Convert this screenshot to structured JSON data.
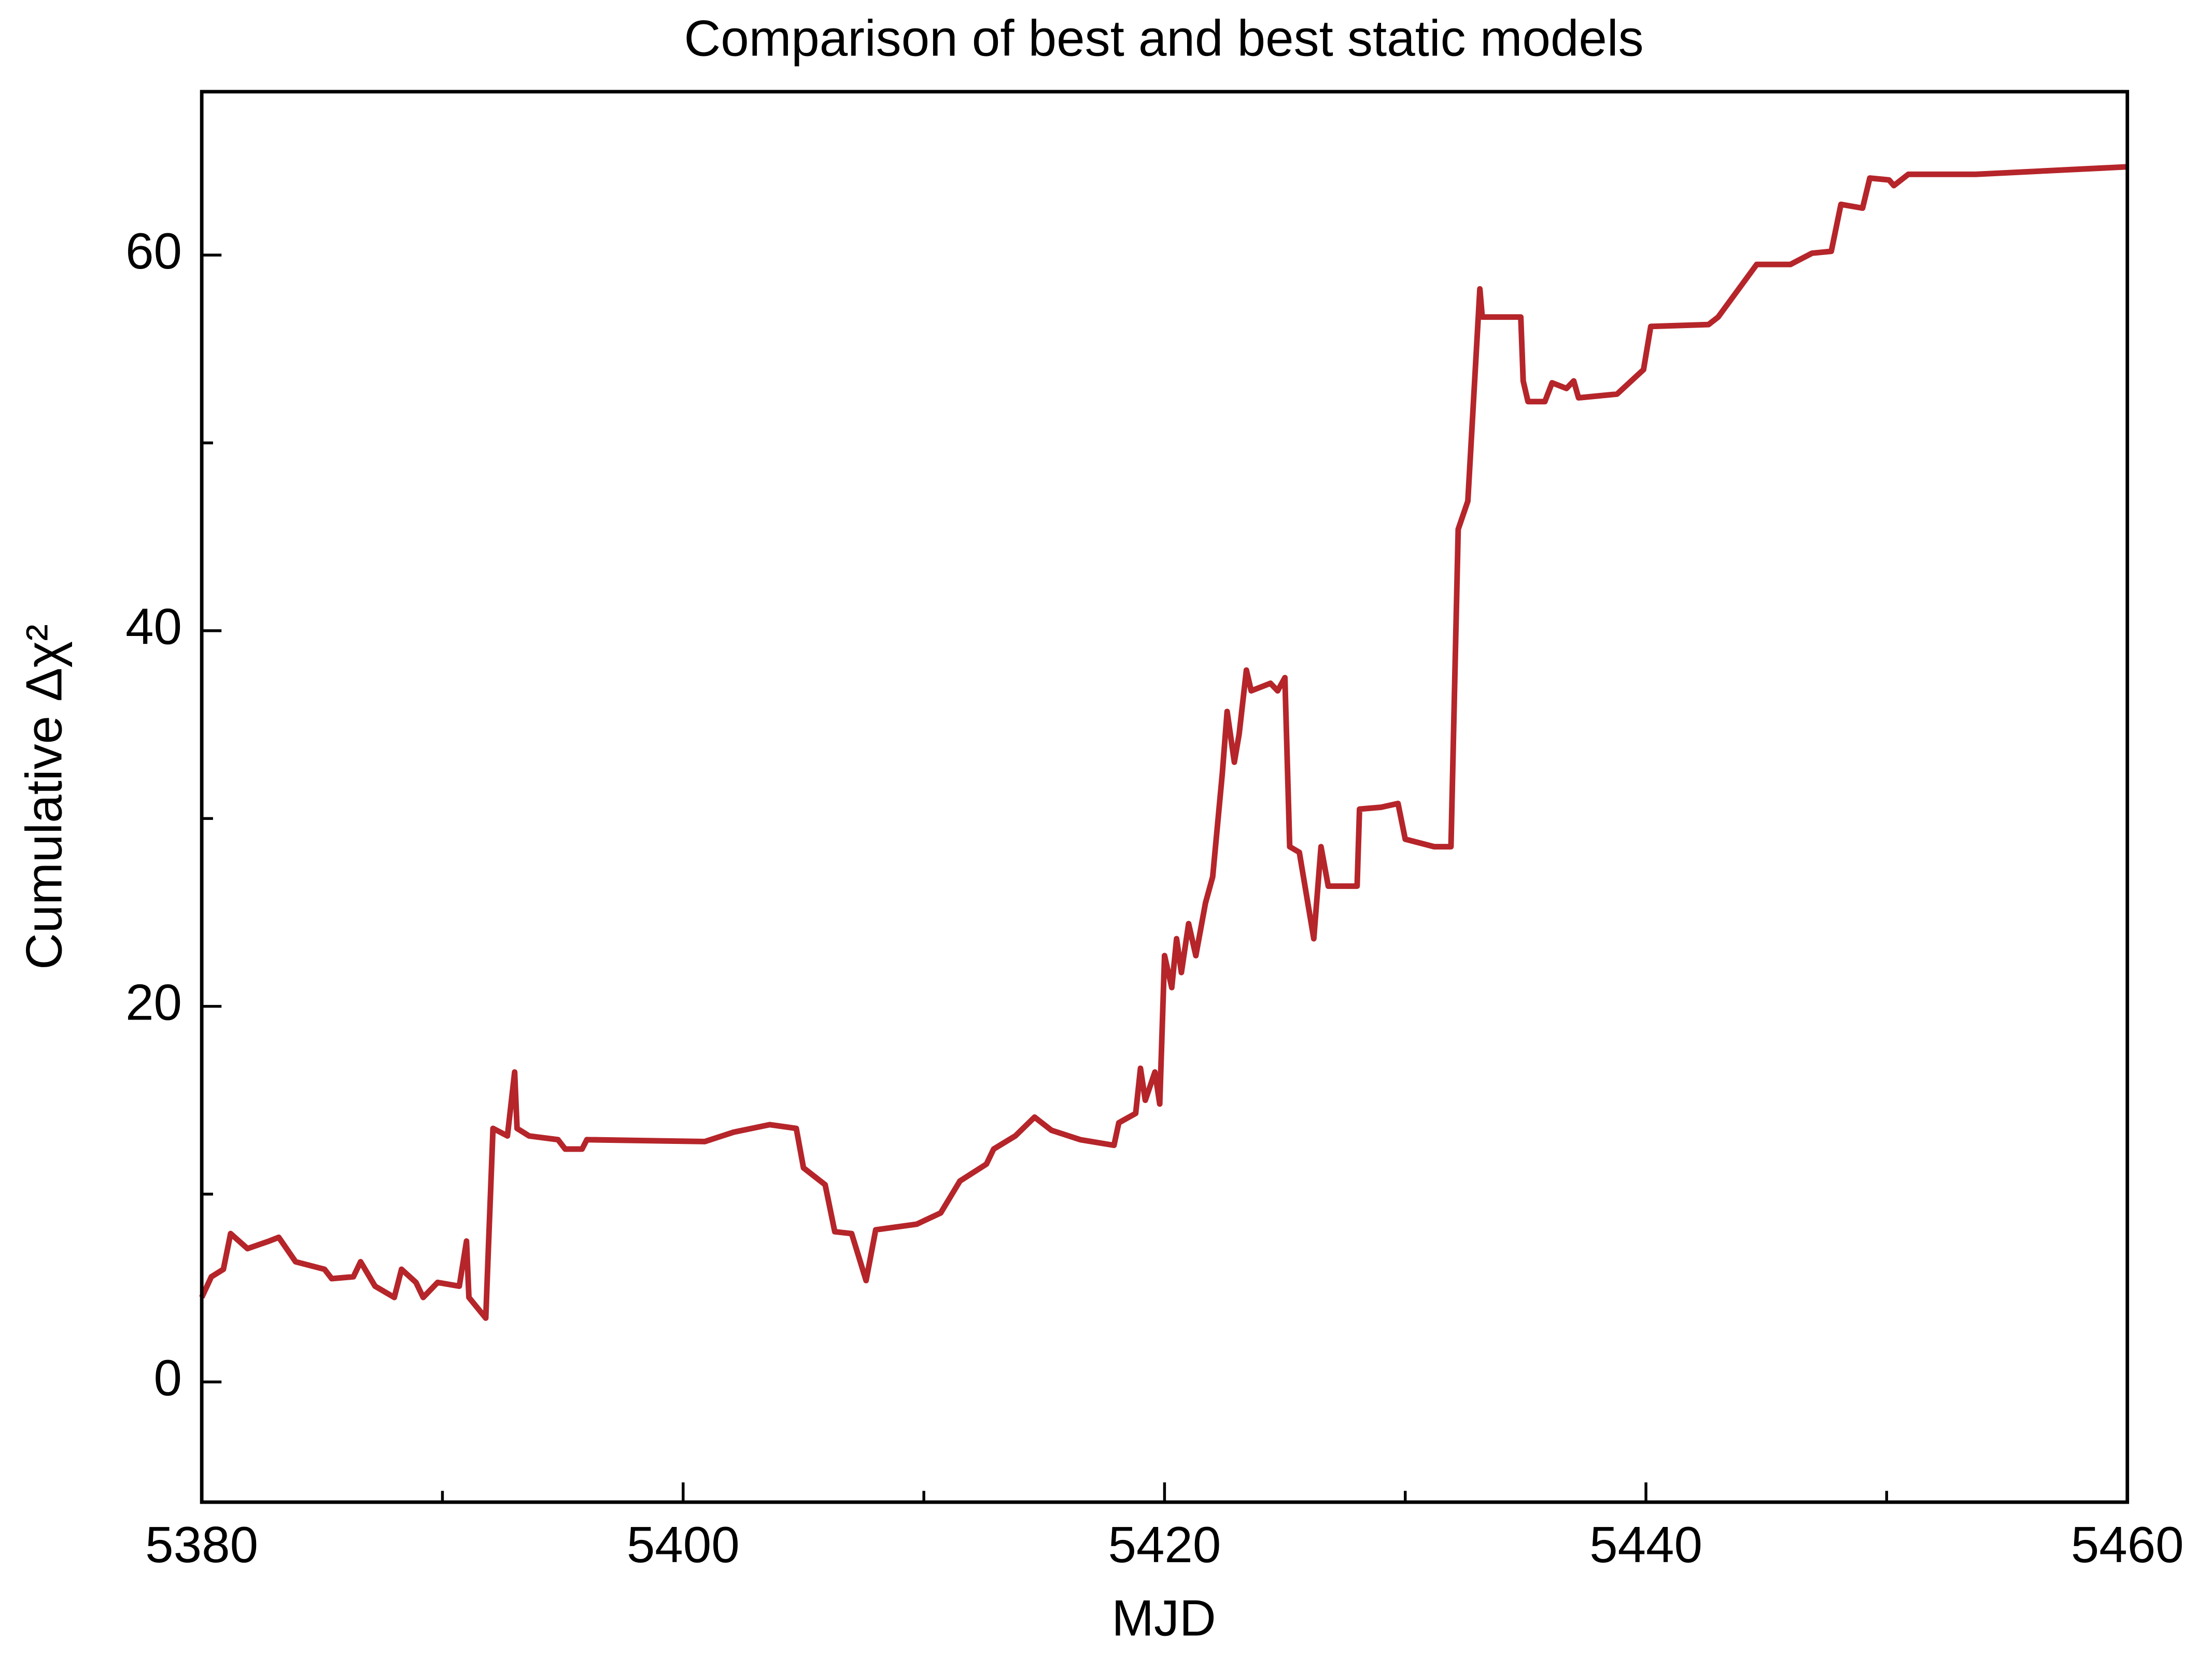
{
  "chart_data": {
    "type": "line",
    "title": "Comparison of best and best static models",
    "x_label": "MJD",
    "y_label": "Cumulative Δχ²",
    "xlim": [
      5380,
      5460
    ],
    "ylim": [
      -6.4,
      68.7
    ],
    "xticks": [
      5380,
      5400,
      5420,
      5440,
      5460
    ],
    "yticks": [
      0,
      20,
      40,
      60
    ],
    "minor_xticks": [
      5390,
      5410,
      5430,
      5450
    ],
    "minor_yticks": [
      10,
      30,
      50
    ],
    "series": [
      {
        "name": "Cumulative Δχ²",
        "color": "#b5252a",
        "x": [
          5380,
          5380.4,
          5380.9,
          5381.2,
          5381.9,
          5382.8,
          5383.2,
          5383.9,
          5385.1,
          5385.4,
          5386.3,
          5386.6,
          5387.2,
          5388.0,
          5388.3,
          5388.9,
          5389.2,
          5389.8,
          5390.7,
          5391.0,
          5391.1,
          5391.8,
          5391.9,
          5392.1,
          5392.7,
          5393.0,
          5393.1,
          5393.6,
          5394.8,
          5395.1,
          5395.8,
          5396.0,
          5400.9,
          5402.1,
          5403.6,
          5404.7,
          5405.0,
          5405.9,
          5406.3,
          5407.0,
          5407.6,
          5408.0,
          5409.7,
          5410.7,
          5411.5,
          5412.6,
          5412.9,
          5413.8,
          5414.6,
          5415.3,
          5416.5,
          5417.9,
          5418.1,
          5418.8,
          5419.0,
          5419.2,
          5419.6,
          5419.8,
          5420.0,
          5420.3,
          5420.5,
          5420.7,
          5421.0,
          5421.3,
          5421.7,
          5422.0,
          5422.4,
          5422.6,
          5422.9,
          5423.1,
          5423.4,
          5423.6,
          5424.4,
          5424.7,
          5425.0,
          5425.2,
          5425.6,
          5426.2,
          5426.5,
          5426.8,
          5428.0,
          5428.1,
          5429.0,
          5429.7,
          5430.0,
          5431.2,
          5431.9,
          5432.2,
          5432.6,
          5433.1,
          5433.2,
          5434.8,
          5434.9,
          5435.1,
          5435.8,
          5436.1,
          5436.7,
          5437.0,
          5437.2,
          5438.8,
          5439.9,
          5440.2,
          5442.6,
          5443.0,
          5444.6,
          5446.0,
          5446.9,
          5447.7,
          5448.1,
          5449.0,
          5449.3,
          5450.1,
          5450.3,
          5450.9,
          5453.7,
          5460.0
        ],
        "values": [
          4.5,
          5.6,
          6.0,
          7.9,
          7.1,
          7.5,
          7.7,
          6.4,
          6.0,
          5.5,
          5.6,
          6.4,
          5.1,
          4.5,
          6.0,
          5.3,
          4.5,
          5.3,
          5.1,
          7.5,
          4.5,
          3.4,
          6.8,
          13.5,
          13.1,
          16.5,
          13.5,
          13.1,
          12.9,
          12.4,
          12.4,
          12.9,
          12.8,
          13.3,
          13.7,
          13.5,
          11.4,
          10.5,
          8.0,
          7.9,
          5.4,
          8.1,
          8.4,
          9.0,
          10.7,
          11.6,
          12.4,
          13.1,
          14.1,
          13.4,
          12.9,
          12.6,
          13.8,
          14.3,
          16.7,
          15.0,
          16.5,
          14.8,
          22.7,
          21.0,
          23.6,
          21.8,
          24.4,
          22.7,
          25.5,
          26.9,
          32.4,
          35.7,
          33.0,
          34.5,
          37.9,
          36.8,
          37.2,
          36.8,
          37.5,
          28.5,
          28.2,
          23.6,
          28.5,
          26.4,
          26.4,
          30.5,
          30.6,
          30.8,
          28.9,
          28.5,
          28.5,
          45.4,
          46.9,
          58.2,
          56.7,
          56.7,
          53.3,
          52.2,
          52.2,
          53.2,
          52.9,
          53.3,
          52.4,
          52.6,
          53.9,
          56.2,
          56.3,
          56.7,
          59.5,
          59.5,
          60.1,
          60.2,
          62.7,
          62.5,
          64.1,
          64.0,
          63.7,
          64.3,
          64.3,
          64.7
        ]
      }
    ]
  }
}
